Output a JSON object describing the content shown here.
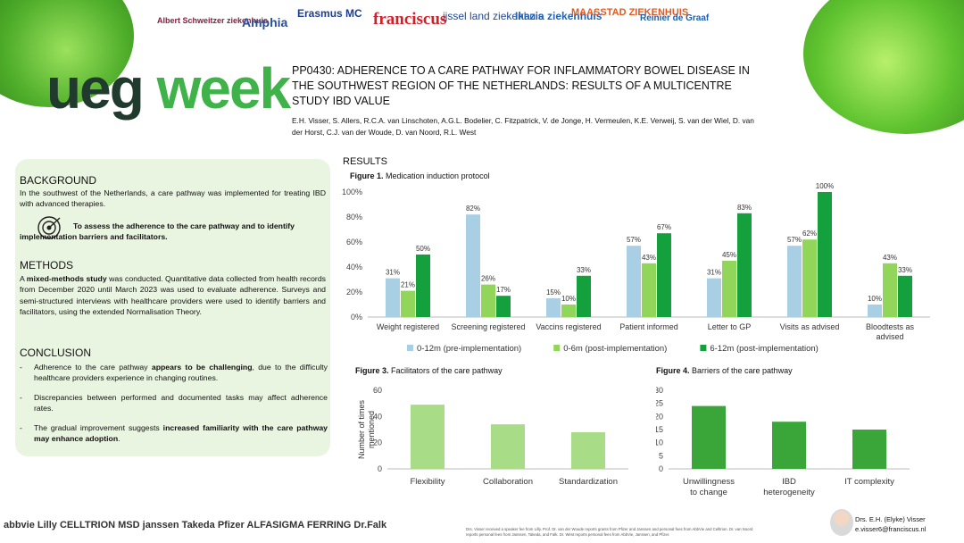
{
  "logos": [
    "Albert Schweitzer ziekenhuis",
    "Amphia",
    "Erasmus MC",
    "franciscus",
    "ijssel land ziekenhuis",
    "Ikazia ziekenhuis",
    "MAASSTAD ZIEKENHUIS",
    "Reinier de Graaf"
  ],
  "colors": {
    "accent": "#3fb24a",
    "dark": "#203a2e",
    "panel": "#eaf5e1",
    "series1": "#a9cfe4",
    "series2": "#91d65a",
    "series3": "#14a03c",
    "fig3": "#a8dc86",
    "fig4": "#3aa63a"
  },
  "brand": {
    "ueg": "ueg",
    "week": "week"
  },
  "header": {
    "title": "PP0430: ADHERENCE TO A CARE PATHWAY FOR INFLAMMATORY BOWEL DISEASE IN THE SOUTHWEST REGION OF THE NETHERLANDS: RESULTS OF A MULTICENTRE STUDY IBD VALUE",
    "authors": "E.H. Visser, S. Allers, R.C.A. van Linschoten, A.G.L. Bodelier, C. Fitzpatrick, V. de Jonge, H. Vermeulen, K.E. Verweij, S. van der Wiel, D. van der Horst, C.J. van der Woude, D. van Noord, R.L. West"
  },
  "background": {
    "heading": "BACKGROUND",
    "text": "In the southwest of the Netherlands, a care pathway was implemented for treating IBD with advanced therapies.",
    "goal": "To assess the adherence to the care pathway and  to identify implementation barriers and facilitators."
  },
  "methods": {
    "heading": "METHODS",
    "pre": "A ",
    "bold": "mixed-methods study",
    "post": " was conducted. Quantitative data collected from health records from December 2020 until March 2023 was used to evaluate adherence. Surveys and semi-structured interviews with healthcare providers were used to identify barriers and facilitators, using the extended Normalisation Theory."
  },
  "conclusion": {
    "heading": "CONCLUSION",
    "items": [
      {
        "pre": "Adherence to the care pathway ",
        "bold": "appears to be challenging",
        "post": ", due to the difficulty healthcare providers experience in changing routines."
      },
      {
        "pre": "Discrepancies between performed and documented tasks may affect adherence rates.",
        "bold": "",
        "post": ""
      },
      {
        "pre": "The gradual improvement suggests ",
        "bold": "increased familiarity with the care pathway may enhance adoption",
        "post": "."
      }
    ]
  },
  "results": {
    "heading": "RESULTS"
  },
  "chart_data": [
    {
      "type": "bar",
      "caption_bold": "Figure 1.",
      "caption": " Medication induction protocol",
      "categories": [
        "Weight registered",
        "Screening registered",
        "Vaccins registered",
        "Patient informed",
        "Letter to GP",
        "Visits as advised",
        "Bloodtests as advised"
      ],
      "series": [
        {
          "name": "0-12m (pre-implementation)",
          "values": [
            31,
            82,
            15,
            57,
            31,
            57,
            10
          ]
        },
        {
          "name": "0-6m (post-implementation)",
          "values": [
            21,
            26,
            10,
            43,
            45,
            62,
            43
          ]
        },
        {
          "name": "6-12m (post-implementation)",
          "values": [
            50,
            17,
            33,
            67,
            83,
            100,
            33
          ]
        }
      ],
      "ylim": [
        0,
        100
      ],
      "yticks": [
        "0%",
        "20%",
        "40%",
        "60%",
        "80%",
        "100%"
      ],
      "value_suffix": "%",
      "legend": "bottom"
    },
    {
      "type": "bar",
      "caption_bold": "Figure 3.",
      "caption": " Facilitators of the care pathway",
      "categories": [
        "Flexibility",
        "Collaboration",
        "Standardization"
      ],
      "values": [
        49,
        34,
        28
      ],
      "ylabel": "Number of times mentioned",
      "ylim": [
        0,
        60
      ],
      "yticks": [
        "0",
        "20",
        "40",
        "60"
      ]
    },
    {
      "type": "bar",
      "caption_bold": "Figure 4.",
      "caption": " Barriers of the care pathway",
      "categories": [
        "Unwillingness to change",
        "IBD heterogeneity",
        "IT complexity"
      ],
      "values": [
        24,
        18,
        15
      ],
      "ylim": [
        0,
        30
      ],
      "yticks": [
        "0",
        "5",
        "10",
        "15",
        "20",
        "25",
        "30"
      ]
    }
  ],
  "footer": {
    "sponsors": "abbvie  Lilly  CELLTRION  MSD  janssen  Takeda  Pfizer  ALFASIGMA  FERRING  Dr.Falk",
    "disclosure": "Drs. Visser received a speaker fee from Lilly. Prof. Dr. van der Woude reports grants from Pfizer and Janssen and personal fees from AbbVie and Celltrion. Dr. van Noord reports personal fees from Janssen, Takeda, and Falk. Dr. West reports personal fees from AbbVie, Janssen, and Pfizer.",
    "contact_name": "Drs. E.H. (Elyke) Visser",
    "contact_email": "e.visser6@franciscus.nl"
  }
}
